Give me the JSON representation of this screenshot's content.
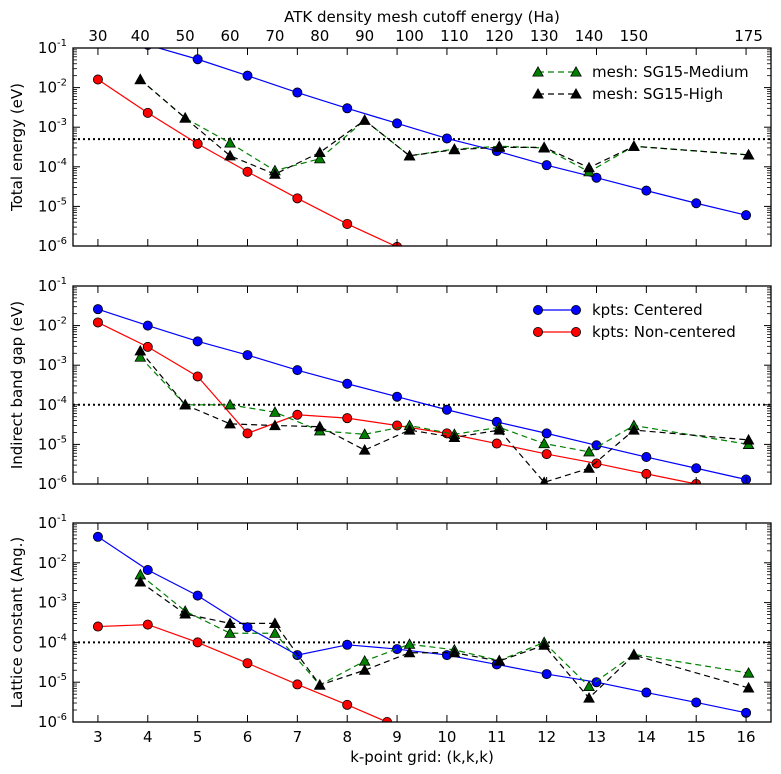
{
  "chart_data": {
    "type": "line",
    "yscale": "log",
    "ylim": [
      1e-06,
      0.1
    ],
    "y_tick_labels": [
      {
        "base": "10",
        "exp": "-1",
        "value": 0.1
      },
      {
        "base": "10",
        "exp": "-2",
        "value": 0.01
      },
      {
        "base": "10",
        "exp": "-3",
        "value": 0.001
      },
      {
        "base": "10",
        "exp": "-4",
        "value": 0.0001
      },
      {
        "base": "10",
        "exp": "-5",
        "value": 1e-05
      },
      {
        "base": "10",
        "exp": "-6",
        "value": 1e-06
      }
    ],
    "x_bottom": {
      "label": "k-point grid: (k,k,k)",
      "lim": [
        2.5,
        16.5
      ],
      "ticks": [
        "3",
        "4",
        "5",
        "6",
        "7",
        "8",
        "9",
        "10",
        "11",
        "12",
        "13",
        "14",
        "15",
        "16"
      ]
    },
    "x_top": {
      "label": "ATK density mesh cutoff energy (Ha)",
      "ticks": [
        {
          "label": "30",
          "pos": 3.0
        },
        {
          "label": "40",
          "pos": 3.85
        },
        {
          "label": "50",
          "pos": 4.75
        },
        {
          "label": "60",
          "pos": 5.65
        },
        {
          "label": "70",
          "pos": 6.55
        },
        {
          "label": "80",
          "pos": 7.45
        },
        {
          "label": "90",
          "pos": 8.35
        },
        {
          "label": "100",
          "pos": 9.25
        },
        {
          "label": "110",
          "pos": 10.15
        },
        {
          "label": "120",
          "pos": 11.05
        },
        {
          "label": "130",
          "pos": 11.95
        },
        {
          "label": "140",
          "pos": 12.85
        },
        {
          "label": "150",
          "pos": 13.75
        },
        {
          "label": "175",
          "pos": 16.05
        }
      ]
    },
    "colors": {
      "centered": "#0000ff",
      "noncentered": "#ff0000",
      "medium": "#008000",
      "high": "#000000"
    },
    "panels": [
      {
        "ylabel": "Total energy (eV)",
        "threshold": 0.0005,
        "legend": {
          "position": "top-right",
          "entries": [
            {
              "label": "mesh: SG15-Medium",
              "series": "medium"
            },
            {
              "label": "mesh: SG15-High",
              "series": "high"
            }
          ]
        },
        "series": [
          {
            "key": "centered",
            "style": "solid",
            "marker": "circle",
            "x": [
              4,
              5,
              6,
              7,
              8,
              9,
              10,
              11,
              12,
              13,
              14,
              15,
              16
            ],
            "y": [
              0.12,
              0.052,
              0.02,
              0.0075,
              0.003,
              0.00125,
              0.00052,
              0.00025,
              0.00011,
              5.3e-05,
              2.5e-05,
              1.2e-05,
              6e-06
            ]
          },
          {
            "key": "noncentered",
            "style": "solid",
            "marker": "circle",
            "x": [
              3,
              4,
              5,
              6,
              7,
              8,
              9,
              9.5
            ],
            "y": [
              0.016,
              0.0023,
              0.00038,
              7.5e-05,
              1.6e-05,
              3.6e-06,
              9.5e-07,
              4e-07
            ]
          },
          {
            "key": "medium",
            "style": "dashed",
            "marker": "triangle",
            "x": [
              3.85,
              4.75,
              5.65,
              6.55,
              7.45,
              8.35,
              9.25,
              10.15,
              11.05,
              11.95,
              12.85,
              13.75,
              16.05
            ],
            "y": [
              0.016,
              0.0017,
              0.0004,
              8e-05,
              0.00016,
              0.0015,
              0.00019,
              0.00028,
              0.00033,
              0.0003,
              7.5e-05,
              0.00033,
              0.0002
            ]
          },
          {
            "key": "high",
            "style": "dashed",
            "marker": "triangle",
            "x": [
              3.85,
              4.75,
              5.65,
              6.55,
              7.45,
              8.35,
              9.25,
              10.15,
              11.05,
              11.95,
              12.85,
              13.75,
              16.05
            ],
            "y": [
              0.016,
              0.0017,
              0.00019,
              6.5e-05,
              0.00023,
              0.0015,
              0.00019,
              0.00027,
              0.00031,
              0.00031,
              9.5e-05,
              0.00033,
              0.0002
            ]
          }
        ]
      },
      {
        "ylabel": "Indirect band gap (eV)",
        "threshold": 0.0001,
        "legend": {
          "position": "top-right",
          "entries": [
            {
              "label": "kpts: Centered",
              "series": "centered"
            },
            {
              "label": "kpts: Non-centered",
              "series": "noncentered"
            }
          ]
        },
        "series": [
          {
            "key": "centered",
            "style": "solid",
            "marker": "circle",
            "x": [
              3,
              4,
              5,
              6,
              7,
              8,
              9,
              10,
              11,
              12,
              13,
              14,
              15,
              16
            ],
            "y": [
              0.026,
              0.01,
              0.004,
              0.0018,
              0.00075,
              0.00034,
              0.00016,
              7.5e-05,
              3.7e-05,
              1.9e-05,
              9.5e-06,
              4.8e-06,
              2.5e-06,
              1.3e-06
            ]
          },
          {
            "key": "noncentered",
            "style": "solid",
            "marker": "circle",
            "x": [
              3,
              4,
              5,
              6,
              7,
              8,
              9,
              10,
              11,
              12,
              13,
              14,
              15,
              16
            ],
            "y": [
              0.012,
              0.0029,
              0.00052,
              1.9e-05,
              5.6e-05,
              4.6e-05,
              3e-05,
              1.9e-05,
              1.05e-05,
              5.7e-06,
              3.3e-06,
              1.8e-06,
              1e-06,
              6e-07
            ]
          },
          {
            "key": "medium",
            "style": "dashed",
            "marker": "triangle",
            "x": [
              3.85,
              4.75,
              5.65,
              6.55,
              7.45,
              8.35,
              9.25,
              10.15,
              11.05,
              11.95,
              12.85,
              13.75,
              16.05
            ],
            "y": [
              0.0016,
              0.0001,
              0.0001,
              6.5e-05,
              2.2e-05,
              1.8e-05,
              3e-05,
              1.8e-05,
              2.7e-05,
              1.05e-05,
              6.5e-06,
              3e-05,
              1e-05
            ]
          },
          {
            "key": "high",
            "style": "dashed",
            "marker": "triangle",
            "x": [
              3.85,
              4.75,
              5.65,
              6.55,
              7.45,
              8.35,
              9.25,
              10.15,
              11.05,
              11.95,
              12.85,
              13.75,
              16.05
            ],
            "y": [
              0.0023,
              0.0001,
              3.3e-05,
              3e-05,
              2.8e-05,
              7.2e-06,
              2.3e-05,
              1.5e-05,
              2.3e-05,
              1.1e-06,
              2.5e-06,
              2.3e-05,
              1.3e-05
            ]
          }
        ]
      },
      {
        "ylabel": "Lattice constant (Ang.)",
        "threshold": 0.0001,
        "legend": null,
        "series": [
          {
            "key": "centered",
            "style": "solid",
            "marker": "circle",
            "x": [
              3,
              4,
              5,
              6,
              7,
              8,
              9,
              10,
              11,
              12,
              13,
              14,
              15,
              16
            ],
            "y": [
              0.045,
              0.0066,
              0.0015,
              0.00024,
              4.8e-05,
              8.7e-05,
              6.8e-05,
              4.8e-05,
              2.8e-05,
              1.6e-05,
              1e-05,
              5.5e-06,
              3.1e-06,
              1.7e-06
            ]
          },
          {
            "key": "noncentered",
            "style": "solid",
            "marker": "circle",
            "x": [
              3,
              4,
              5,
              6,
              7,
              8,
              8.8
            ],
            "y": [
              0.00025,
              0.00028,
              0.0001,
              3e-05,
              8.8e-06,
              2.7e-06,
              1e-06
            ]
          },
          {
            "key": "medium",
            "style": "dashed",
            "marker": "triangle",
            "x": [
              3.85,
              4.75,
              5.65,
              6.55,
              7.45,
              8.35,
              9.25,
              10.15,
              11.05,
              11.95,
              12.85,
              13.75,
              16.05
            ],
            "y": [
              0.005,
              0.00061,
              0.00017,
              0.00017,
              8.5e-06,
              3.4e-05,
              9e-05,
              6.5e-05,
              3.5e-05,
              0.0001,
              7.8e-06,
              5e-05,
              1.7e-05
            ]
          },
          {
            "key": "high",
            "style": "dashed",
            "marker": "triangle",
            "x": [
              3.85,
              4.75,
              5.65,
              6.55,
              7.45,
              8.35,
              9.25,
              10.15,
              11.05,
              11.95,
              12.85,
              13.75,
              16.05
            ],
            "y": [
              0.0033,
              0.00052,
              0.0003,
              0.0003,
              8.5e-06,
              2e-05,
              5.5e-05,
              5.5e-05,
              3.4e-05,
              8.5e-05,
              4e-06,
              4.8e-05,
              7.2e-06
            ]
          }
        ]
      }
    ]
  }
}
